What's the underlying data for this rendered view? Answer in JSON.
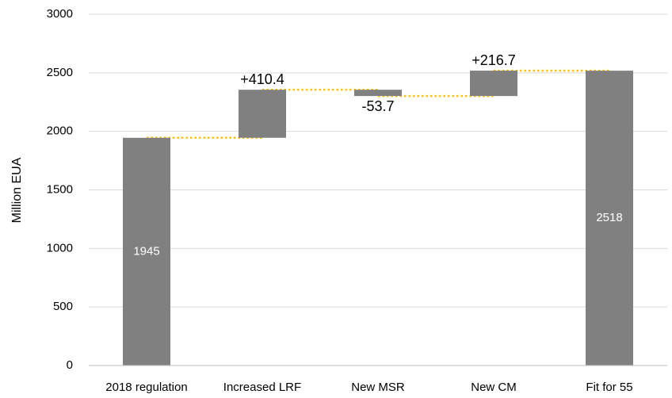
{
  "chart_data": {
    "type": "waterfall",
    "y_label": "Million EUA",
    "categories": [
      "2018 regulation",
      "Increased LRF",
      "New MSR",
      "New CM",
      "Fit for 55"
    ],
    "values": [
      1945,
      410.4,
      -53.7,
      216.7,
      2518
    ],
    "value_labels": [
      "1945",
      "+410.4",
      "-53.7",
      "+216.7",
      "2518"
    ],
    "measure": [
      "absolute",
      "relative",
      "relative",
      "relative",
      "total"
    ],
    "color": "#808080",
    "connector_color": "#ffc000",
    "ylim": [
      0,
      3000
    ],
    "yticks": [
      0,
      500,
      1000,
      1500,
      2000,
      2500,
      3000
    ],
    "grid": true
  }
}
